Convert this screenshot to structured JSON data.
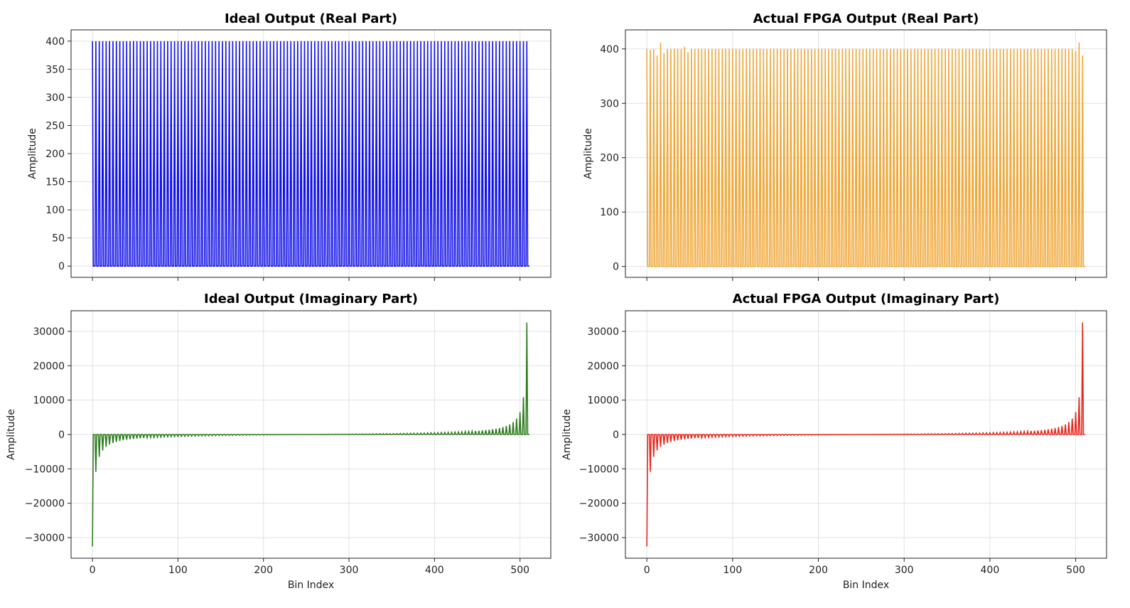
{
  "chart_data": [
    {
      "id": "ideal-real",
      "type": "line",
      "title": "Ideal Output (Real Part)",
      "xlabel": "",
      "ylabel": "Amplitude",
      "xlim": [
        -25,
        536
      ],
      "ylim": [
        -20,
        420
      ],
      "xticks": [
        0,
        100,
        200,
        300,
        400,
        500
      ],
      "show_xticklabels": false,
      "yticks": [
        0,
        50,
        100,
        150,
        200,
        250,
        300,
        350,
        400
      ],
      "yticklabels": [
        "0",
        "50",
        "100",
        "150",
        "200",
        "250",
        "300",
        "350",
        "400"
      ],
      "grid": true,
      "color": "#1010e8",
      "pattern": "comb",
      "n_points": 512,
      "period": 4,
      "baseline": 0,
      "peak": 400
    },
    {
      "id": "actual-real",
      "type": "line",
      "title": "Actual FPGA Output (Real Part)",
      "xlabel": "",
      "ylabel": "Amplitude",
      "xlim": [
        -25,
        536
      ],
      "ylim": [
        -20,
        435
      ],
      "xticks": [
        0,
        100,
        200,
        300,
        400,
        500
      ],
      "show_xticklabels": false,
      "yticks": [
        0,
        100,
        200,
        300,
        400
      ],
      "yticklabels": [
        "0",
        "100",
        "200",
        "300",
        "400"
      ],
      "grid": true,
      "color": "#f0a83a",
      "pattern": "comb",
      "n_points": 512,
      "period": 4,
      "baseline": 0,
      "peak": 400,
      "peak_overrides": [
        [
          4,
          398
        ],
        [
          12,
          388
        ],
        [
          16,
          412
        ],
        [
          20,
          392
        ],
        [
          44,
          404
        ],
        [
          48,
          394
        ],
        [
          500,
          396
        ],
        [
          504,
          412
        ],
        [
          508,
          388
        ]
      ]
    },
    {
      "id": "ideal-imag",
      "type": "line",
      "title": "Ideal Output (Imaginary Part)",
      "xlabel": "Bin Index",
      "ylabel": "Amplitude",
      "xlim": [
        -25,
        536
      ],
      "ylim": [
        -36000,
        36000
      ],
      "xticks": [
        0,
        100,
        200,
        300,
        400,
        500
      ],
      "xticklabels": [
        "0",
        "100",
        "200",
        "300",
        "400",
        "500"
      ],
      "show_xticklabels": true,
      "yticks": [
        -30000,
        -20000,
        -10000,
        0,
        10000,
        20000,
        30000
      ],
      "yticklabels": [
        "−30000",
        "−20000",
        "−10000",
        "0",
        "10000",
        "20000",
        "30000"
      ],
      "grid": true,
      "color": "#2e7d1e",
      "pattern": "cot",
      "n_points": 512,
      "period": 4,
      "scale": 32600
    },
    {
      "id": "actual-imag",
      "type": "line",
      "title": "Actual FPGA Output (Imaginary Part)",
      "xlabel": "Bin Index",
      "ylabel": "Amplitude",
      "xlim": [
        -25,
        536
      ],
      "ylim": [
        -36000,
        36000
      ],
      "xticks": [
        0,
        100,
        200,
        300,
        400,
        500
      ],
      "xticklabels": [
        "0",
        "100",
        "200",
        "300",
        "400",
        "500"
      ],
      "show_xticklabels": true,
      "yticks": [
        -30000,
        -20000,
        -10000,
        0,
        10000,
        20000,
        30000
      ],
      "yticklabels": [
        "−30000",
        "−20000",
        "−10000",
        "0",
        "10000",
        "20000",
        "30000"
      ],
      "grid": true,
      "color": "#e8281e",
      "pattern": "cot",
      "n_points": 512,
      "period": 4,
      "scale": 32600
    }
  ]
}
